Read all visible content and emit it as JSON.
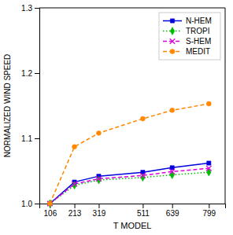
{
  "chart_data": {
    "type": "line",
    "x_label": "T MODEL",
    "y_label": "NORMALIZED WIND SPEED",
    "x": [
      106,
      213,
      319,
      511,
      639,
      799
    ],
    "series": [
      {
        "name": "N-HEM",
        "color": "#0000dd",
        "marker": "square",
        "line_style": "solid",
        "values": [
          1.0,
          1.033,
          1.042,
          1.048,
          1.055,
          1.062
        ]
      },
      {
        "name": "TROPI",
        "color": "#00bb00",
        "marker": "diamond",
        "line_style": "dotted",
        "values": [
          1.0,
          1.028,
          1.036,
          1.04,
          1.044,
          1.048
        ]
      },
      {
        "name": "S-HEM",
        "color": "#dd00dd",
        "marker": "x",
        "line_style": "dashed",
        "values": [
          1.0,
          1.03,
          1.038,
          1.043,
          1.049,
          1.054
        ]
      },
      {
        "name": "MEDIT",
        "color": "#ff8800",
        "marker": "circle",
        "line_style": "dashed",
        "values": [
          1.0,
          1.087,
          1.108,
          1.13,
          1.143,
          1.153
        ]
      }
    ],
    "xlim": [
      60,
      870
    ],
    "xticks": [
      106,
      213,
      319,
      511,
      639,
      799
    ],
    "ylim": [
      1.0,
      1.3
    ],
    "yticks": [
      {
        "value": 1.0,
        "label": "1.0"
      },
      1.1,
      1.2,
      1.3
    ],
    "grid": false,
    "legend": "upper right"
  }
}
